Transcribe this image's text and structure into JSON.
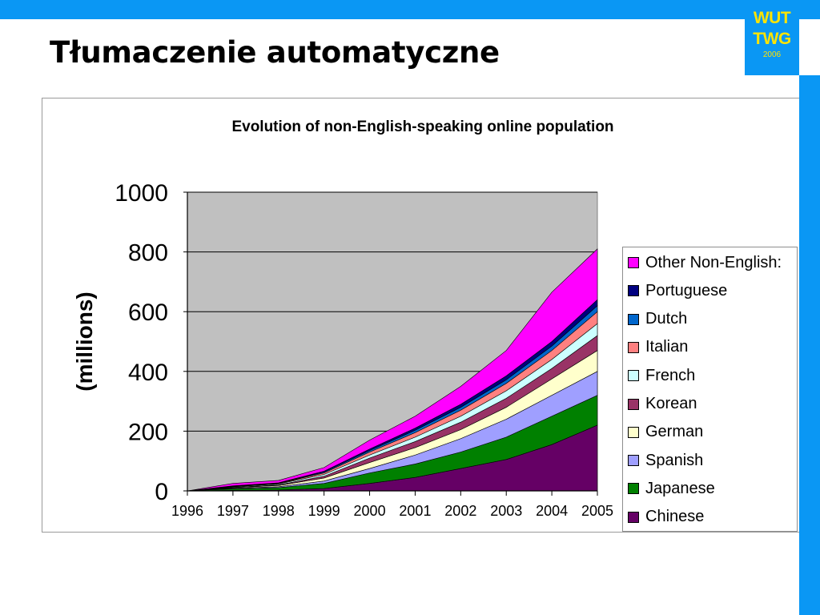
{
  "slide": {
    "title": "Tłumaczenie automatyczne",
    "logo": {
      "line1": "WUT",
      "line2": "TWG",
      "year": "2006"
    }
  },
  "colors": {
    "accent_bar": "#0a97f4",
    "logo_text": "#ffe400",
    "plot_background": "#c0c0c0"
  },
  "chart_data": {
    "type": "area",
    "stacked": true,
    "title": "Evolution of non-English-speaking online population",
    "xlabel": "",
    "ylabel": "(millions)",
    "x": [
      "1996",
      "1997",
      "1998",
      "1999",
      "2000",
      "2001",
      "2002",
      "2003",
      "2004",
      "2005"
    ],
    "ylim": [
      0,
      1000
    ],
    "yticks": [
      0,
      200,
      400,
      600,
      800,
      1000
    ],
    "grid": true,
    "legend_position": "right",
    "series": [
      {
        "name": "Chinese",
        "color": "#650065",
        "values": [
          0,
          2,
          3,
          8,
          25,
          45,
          75,
          105,
          155,
          220
        ]
      },
      {
        "name": "Japanese",
        "color": "#008000",
        "values": [
          0,
          5,
          8,
          17,
          35,
          45,
          55,
          75,
          95,
          100
        ]
      },
      {
        "name": "Spanish",
        "color": "#9f9fff",
        "values": [
          0,
          2,
          3,
          8,
          15,
          30,
          45,
          60,
          70,
          80
        ]
      },
      {
        "name": "German",
        "color": "#ffffcc",
        "values": [
          0,
          2,
          4,
          10,
          20,
          25,
          30,
          40,
          55,
          70
        ]
      },
      {
        "name": "Korean",
        "color": "#993366",
        "values": [
          0,
          1,
          2,
          6,
          15,
          20,
          25,
          30,
          35,
          50
        ]
      },
      {
        "name": "French",
        "color": "#ccffff",
        "values": [
          0,
          2,
          3,
          6,
          10,
          15,
          20,
          25,
          30,
          40
        ]
      },
      {
        "name": "Italian",
        "color": "#ff8080",
        "values": [
          0,
          1,
          2,
          5,
          10,
          15,
          20,
          25,
          30,
          40
        ]
      },
      {
        "name": "Dutch",
        "color": "#0066cc",
        "values": [
          0,
          1,
          1,
          3,
          5,
          8,
          10,
          12,
          15,
          20
        ]
      },
      {
        "name": "Portuguese",
        "color": "#000080",
        "values": [
          0,
          1,
          1,
          3,
          5,
          7,
          10,
          13,
          15,
          20
        ]
      },
      {
        "name": "Other Non-English:",
        "color": "#ff00ff",
        "values": [
          0,
          8,
          8,
          12,
          30,
          40,
          60,
          85,
          165,
          170
        ]
      }
    ]
  }
}
